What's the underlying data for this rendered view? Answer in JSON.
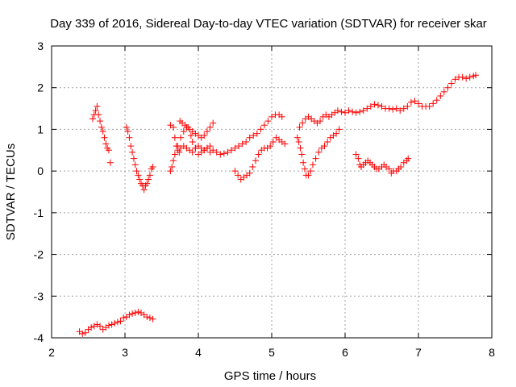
{
  "chart_data": {
    "type": "scatter",
    "title": "Day 339 of 2016, Sidereal Day-to-day VTEC variation (SDTVAR) for receiver skar",
    "xlabel": "GPS time / hours",
    "ylabel": "SDTVAR / TECUs",
    "xlim": [
      2,
      8
    ],
    "ylim": [
      -4,
      3
    ],
    "xticks": [
      2,
      3,
      4,
      5,
      6,
      7,
      8
    ],
    "yticks": [
      -4,
      -3,
      -2,
      -1,
      0,
      1,
      2,
      3
    ],
    "xtick_labels": [
      "2",
      "3",
      "4",
      "5",
      "6",
      "7",
      "8"
    ],
    "ytick_labels": [
      "-4",
      "-3",
      "-2",
      "-1",
      "0",
      "1",
      "2",
      "3"
    ],
    "grid": true,
    "marker": "+",
    "color": "#ff0000",
    "series": [
      {
        "points": [
          [
            2.56,
            1.25
          ],
          [
            2.58,
            1.35
          ],
          [
            2.6,
            1.45
          ],
          [
            2.62,
            1.55
          ],
          [
            2.64,
            1.35
          ],
          [
            2.66,
            1.2
          ],
          [
            2.68,
            1.05
          ],
          [
            2.7,
            0.95
          ],
          [
            2.72,
            0.8
          ],
          [
            2.74,
            0.65
          ],
          [
            2.76,
            0.55
          ],
          [
            2.78,
            0.5
          ],
          [
            2.8,
            0.2
          ]
        ]
      },
      {
        "points": [
          [
            3.02,
            1.05
          ],
          [
            3.04,
            0.95
          ],
          [
            3.06,
            0.8
          ],
          [
            3.08,
            0.6
          ],
          [
            3.1,
            0.45
          ],
          [
            3.12,
            0.3
          ],
          [
            3.14,
            0.15
          ],
          [
            3.16,
            0.0
          ],
          [
            3.18,
            -0.1
          ],
          [
            3.2,
            -0.2
          ],
          [
            3.22,
            -0.3
          ],
          [
            3.24,
            -0.35
          ],
          [
            3.26,
            -0.45
          ],
          [
            3.28,
            -0.35
          ],
          [
            3.3,
            -0.3
          ],
          [
            3.32,
            -0.2
          ],
          [
            3.34,
            -0.1
          ],
          [
            3.36,
            0.05
          ],
          [
            3.38,
            0.1
          ]
        ]
      },
      {
        "points": [
          [
            2.38,
            -3.85
          ],
          [
            2.42,
            -3.9
          ],
          [
            2.46,
            -3.88
          ],
          [
            2.5,
            -3.8
          ],
          [
            2.54,
            -3.75
          ],
          [
            2.58,
            -3.72
          ],
          [
            2.62,
            -3.68
          ],
          [
            2.66,
            -3.72
          ],
          [
            2.7,
            -3.8
          ],
          [
            2.74,
            -3.75
          ],
          [
            2.78,
            -3.7
          ],
          [
            2.82,
            -3.68
          ],
          [
            2.86,
            -3.65
          ],
          [
            2.9,
            -3.62
          ],
          [
            2.94,
            -3.6
          ],
          [
            2.98,
            -3.52
          ],
          [
            3.02,
            -3.5
          ],
          [
            3.06,
            -3.45
          ],
          [
            3.1,
            -3.42
          ],
          [
            3.14,
            -3.4
          ],
          [
            3.18,
            -3.38
          ],
          [
            3.22,
            -3.4
          ],
          [
            3.26,
            -3.45
          ],
          [
            3.3,
            -3.5
          ],
          [
            3.34,
            -3.52
          ],
          [
            3.38,
            -3.55
          ]
        ]
      },
      {
        "points": [
          [
            3.62,
            1.1
          ],
          [
            3.66,
            1.05
          ],
          [
            3.68,
            0.8
          ],
          [
            3.7,
            0.6
          ],
          [
            3.72,
            0.5
          ],
          [
            3.74,
            0.45
          ],
          [
            3.76,
            0.55
          ],
          [
            3.8,
            0.6
          ],
          [
            3.84,
            0.55
          ],
          [
            3.88,
            0.5
          ],
          [
            3.92,
            0.45
          ],
          [
            3.96,
            0.55
          ],
          [
            4.0,
            0.6
          ],
          [
            4.04,
            0.55
          ],
          [
            4.08,
            0.5
          ],
          [
            4.12,
            0.55
          ],
          [
            4.16,
            0.45
          ],
          [
            4.2,
            0.5
          ],
          [
            4.25,
            0.45
          ],
          [
            4.3,
            0.4
          ],
          [
            4.35,
            0.42
          ],
          [
            4.4,
            0.45
          ],
          [
            4.45,
            0.5
          ],
          [
            4.5,
            0.55
          ],
          [
            4.55,
            0.6
          ],
          [
            4.6,
            0.65
          ],
          [
            4.65,
            0.7
          ],
          [
            4.7,
            0.8
          ],
          [
            4.75,
            0.85
          ],
          [
            4.8,
            0.9
          ],
          [
            4.85,
            1.0
          ],
          [
            4.9,
            1.1
          ],
          [
            4.95,
            1.2
          ],
          [
            5.0,
            1.3
          ],
          [
            5.05,
            1.35
          ],
          [
            5.1,
            1.35
          ],
          [
            5.14,
            1.3
          ]
        ]
      },
      {
        "points": [
          [
            3.62,
            0.0
          ],
          [
            3.64,
            0.1
          ],
          [
            3.66,
            0.25
          ],
          [
            3.68,
            0.4
          ],
          [
            3.72,
            0.6
          ],
          [
            3.76,
            0.8
          ],
          [
            3.8,
            0.95
          ],
          [
            3.84,
            1.05
          ],
          [
            3.88,
            1.0
          ],
          [
            3.92,
            0.95
          ],
          [
            3.96,
            0.9
          ],
          [
            4.0,
            0.85
          ],
          [
            4.04,
            0.8
          ],
          [
            4.08,
            0.85
          ],
          [
            4.12,
            0.95
          ],
          [
            4.16,
            1.05
          ],
          [
            4.2,
            1.15
          ]
        ]
      },
      {
        "points": [
          [
            3.75,
            1.2
          ],
          [
            3.78,
            1.15
          ],
          [
            3.82,
            1.1
          ],
          [
            3.86,
            1.05
          ],
          [
            3.9,
            0.85
          ],
          [
            3.92,
            0.7
          ],
          [
            3.96,
            0.55
          ],
          [
            4.0,
            0.4
          ],
          [
            4.04,
            0.45
          ],
          [
            4.08,
            0.5
          ],
          [
            4.12,
            0.55
          ],
          [
            4.16,
            0.6
          ]
        ]
      },
      {
        "points": [
          [
            4.5,
            0.0
          ],
          [
            4.54,
            -0.1
          ],
          [
            4.58,
            -0.2
          ],
          [
            4.62,
            -0.15
          ],
          [
            4.66,
            -0.1
          ],
          [
            4.7,
            -0.05
          ],
          [
            4.74,
            0.1
          ],
          [
            4.78,
            0.25
          ],
          [
            4.82,
            0.4
          ],
          [
            4.86,
            0.5
          ],
          [
            4.9,
            0.55
          ],
          [
            4.94,
            0.55
          ],
          [
            4.98,
            0.6
          ],
          [
            5.02,
            0.7
          ],
          [
            5.06,
            0.8
          ],
          [
            5.1,
            0.75
          ],
          [
            5.14,
            0.7
          ],
          [
            5.18,
            0.65
          ]
        ]
      },
      {
        "points": [
          [
            5.35,
            0.8
          ],
          [
            5.37,
            0.7
          ],
          [
            5.39,
            0.55
          ],
          [
            5.41,
            0.4
          ],
          [
            5.43,
            0.2
          ],
          [
            5.45,
            0.05
          ],
          [
            5.47,
            -0.1
          ],
          [
            5.5,
            -0.1
          ],
          [
            5.53,
            0.0
          ],
          [
            5.56,
            0.15
          ],
          [
            5.6,
            0.3
          ],
          [
            5.64,
            0.45
          ],
          [
            5.68,
            0.55
          ],
          [
            5.72,
            0.6
          ],
          [
            5.76,
            0.7
          ],
          [
            5.8,
            0.8
          ],
          [
            5.84,
            0.85
          ],
          [
            5.88,
            0.9
          ],
          [
            5.92,
            1.0
          ]
        ]
      },
      {
        "points": [
          [
            5.38,
            1.05
          ],
          [
            5.42,
            1.15
          ],
          [
            5.46,
            1.25
          ],
          [
            5.5,
            1.3
          ],
          [
            5.54,
            1.25
          ],
          [
            5.58,
            1.2
          ],
          [
            5.62,
            1.15
          ],
          [
            5.66,
            1.2
          ],
          [
            5.7,
            1.3
          ],
          [
            5.74,
            1.35
          ],
          [
            5.78,
            1.3
          ],
          [
            5.82,
            1.35
          ],
          [
            5.86,
            1.4
          ],
          [
            5.9,
            1.45
          ],
          [
            5.95,
            1.42
          ],
          [
            6.0,
            1.4
          ],
          [
            6.05,
            1.45
          ],
          [
            6.1,
            1.42
          ],
          [
            6.15,
            1.4
          ],
          [
            6.2,
            1.42
          ],
          [
            6.25,
            1.45
          ],
          [
            6.3,
            1.5
          ],
          [
            6.35,
            1.55
          ],
          [
            6.4,
            1.6
          ],
          [
            6.45,
            1.58
          ],
          [
            6.5,
            1.55
          ],
          [
            6.55,
            1.5
          ],
          [
            6.6,
            1.5
          ],
          [
            6.65,
            1.48
          ],
          [
            6.7,
            1.5
          ],
          [
            6.75,
            1.45
          ],
          [
            6.8,
            1.5
          ],
          [
            6.85,
            1.55
          ],
          [
            6.9,
            1.65
          ],
          [
            6.95,
            1.68
          ],
          [
            7.0,
            1.62
          ],
          [
            7.05,
            1.55
          ],
          [
            7.1,
            1.55
          ],
          [
            7.15,
            1.55
          ],
          [
            7.2,
            1.62
          ],
          [
            7.25,
            1.7
          ],
          [
            7.3,
            1.8
          ],
          [
            7.35,
            1.9
          ],
          [
            7.4,
            2.0
          ],
          [
            7.45,
            2.1
          ],
          [
            7.5,
            2.2
          ],
          [
            7.55,
            2.25
          ],
          [
            7.6,
            2.25
          ],
          [
            7.65,
            2.22
          ],
          [
            7.7,
            2.25
          ],
          [
            7.75,
            2.28
          ],
          [
            7.78,
            2.3
          ]
        ]
      },
      {
        "points": [
          [
            6.15,
            0.4
          ],
          [
            6.18,
            0.3
          ],
          [
            6.2,
            0.15
          ],
          [
            6.22,
            0.1
          ],
          [
            6.25,
            0.15
          ],
          [
            6.28,
            0.2
          ],
          [
            6.31,
            0.25
          ],
          [
            6.34,
            0.2
          ],
          [
            6.37,
            0.15
          ],
          [
            6.4,
            0.1
          ],
          [
            6.43,
            0.05
          ],
          [
            6.46,
            0.05
          ],
          [
            6.5,
            0.1
          ],
          [
            6.53,
            0.15
          ],
          [
            6.56,
            0.1
          ],
          [
            6.6,
            0.05
          ],
          [
            6.63,
            -0.05
          ],
          [
            6.66,
            0.0
          ],
          [
            6.7,
            0.0
          ],
          [
            6.73,
            0.05
          ],
          [
            6.76,
            0.1
          ],
          [
            6.8,
            0.2
          ],
          [
            6.84,
            0.25
          ],
          [
            6.86,
            0.3
          ]
        ]
      }
    ]
  }
}
